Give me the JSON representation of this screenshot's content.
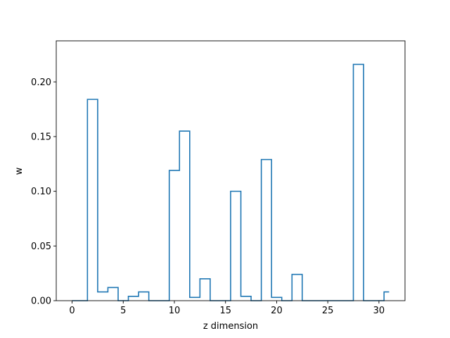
{
  "chart_data": {
    "type": "line",
    "subtype": "step",
    "title": "",
    "xlabel": "z dimension",
    "ylabel": "w",
    "xlim": [
      -1.55,
      32.55
    ],
    "ylim": [
      0,
      0.2375
    ],
    "xticks": [
      0,
      5,
      10,
      15,
      20,
      25,
      30
    ],
    "yticks": [
      0.0,
      0.05,
      0.1,
      0.15,
      0.2
    ],
    "xtick_labels": [
      "0",
      "5",
      "10",
      "15",
      "20",
      "25",
      "30"
    ],
    "ytick_labels": [
      "0.00",
      "0.05",
      "0.10",
      "0.15",
      "0.20"
    ],
    "grid": false,
    "legend": "none",
    "series": [
      {
        "color": "#1f77b4",
        "x": [
          0,
          1,
          2,
          3,
          4,
          5,
          6,
          7,
          8,
          9,
          10,
          11,
          12,
          13,
          14,
          15,
          16,
          17,
          18,
          19,
          20,
          21,
          22,
          23,
          24,
          25,
          26,
          27,
          28,
          29,
          30,
          31
        ],
        "values": [
          0.0,
          0.0,
          0.184,
          0.008,
          0.012,
          0.0,
          0.004,
          0.008,
          0.0,
          0.0,
          0.119,
          0.155,
          0.003,
          0.02,
          0.0,
          0.0,
          0.1,
          0.004,
          0.0,
          0.129,
          0.003,
          0.0,
          0.024,
          0.0,
          0.0,
          0.0,
          0.0,
          0.0,
          0.216,
          0.0,
          0.0,
          0.008
        ]
      }
    ]
  }
}
